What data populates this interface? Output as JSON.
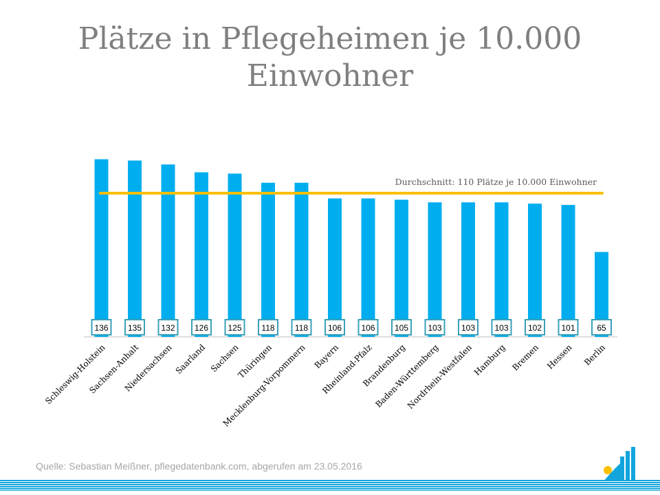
{
  "title": "Plätze in Pflegeheimen je 10.000 Einwohner",
  "source": "Quelle: Sebastian Meißner, pflegedatenbank.com, abgerufen am 23.05.2016",
  "colors": {
    "bar": "#00aeef",
    "average_line": "#fbbf00",
    "label_border": "#3aa0b8",
    "title": "#7f7f7f",
    "footer": "#12a5dc"
  },
  "chart_data": {
    "type": "bar",
    "title": "Plätze in Pflegeheimen je 10.000 Einwohner",
    "xlabel": "",
    "ylabel": "",
    "categories": [
      "Schleswig-Holstein",
      "Sachsen-Anhalt",
      "Niedersachsen",
      "Saarland",
      "Sachsen",
      "Thüringen",
      "Mecklenburg-Vorpommern",
      "Bayern",
      "Rheinland-Pfalz",
      "Brandenburg",
      "Baden-Württemberg",
      "Nordrhein-Westfalen",
      "Hamburg",
      "Bremen",
      "Hessen",
      "Berlin"
    ],
    "values": [
      136,
      135,
      132,
      126,
      125,
      118,
      118,
      106,
      106,
      105,
      103,
      103,
      103,
      102,
      101,
      65
    ],
    "reference_line": {
      "value": 110,
      "label": "Durchschnitt: 110 Plätze je 10.000 Einwohner"
    },
    "ylim": [
      0,
      140
    ],
    "grid": false,
    "legend": "none",
    "data_labels": "bottom-inside"
  }
}
